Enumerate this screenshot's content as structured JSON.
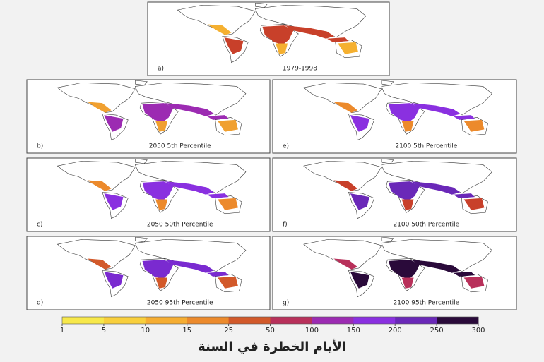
{
  "panels": [
    {
      "label": "a)",
      "caption": "1979-1998"
    },
    {
      "label": "b)",
      "caption": "2050 5th Percentile"
    },
    {
      "label": "c)",
      "caption": "2050 50th Percentile"
    },
    {
      "label": "d)",
      "caption": "2050 95th Percentile"
    },
    {
      "label": "e)",
      "caption": "2100 5th Percentile"
    },
    {
      "label": "f)",
      "caption": "2100 50th Percentile"
    },
    {
      "label": "g)",
      "caption": "2100 95th Percentile"
    }
  ],
  "colorbar": {
    "ticks": [
      1,
      5,
      10,
      15,
      25,
      50,
      100,
      150,
      200,
      250,
      300
    ],
    "colors": [
      "#f7e84a",
      "#f8cf3c",
      "#f5ad32",
      "#ec8a2c",
      "#d2592a",
      "#b8305a",
      "#9c2bb2",
      "#8a30e0",
      "#6a28b8",
      "#2a0a3a"
    ],
    "title": "الأيام الخطرة في السنة"
  }
}
